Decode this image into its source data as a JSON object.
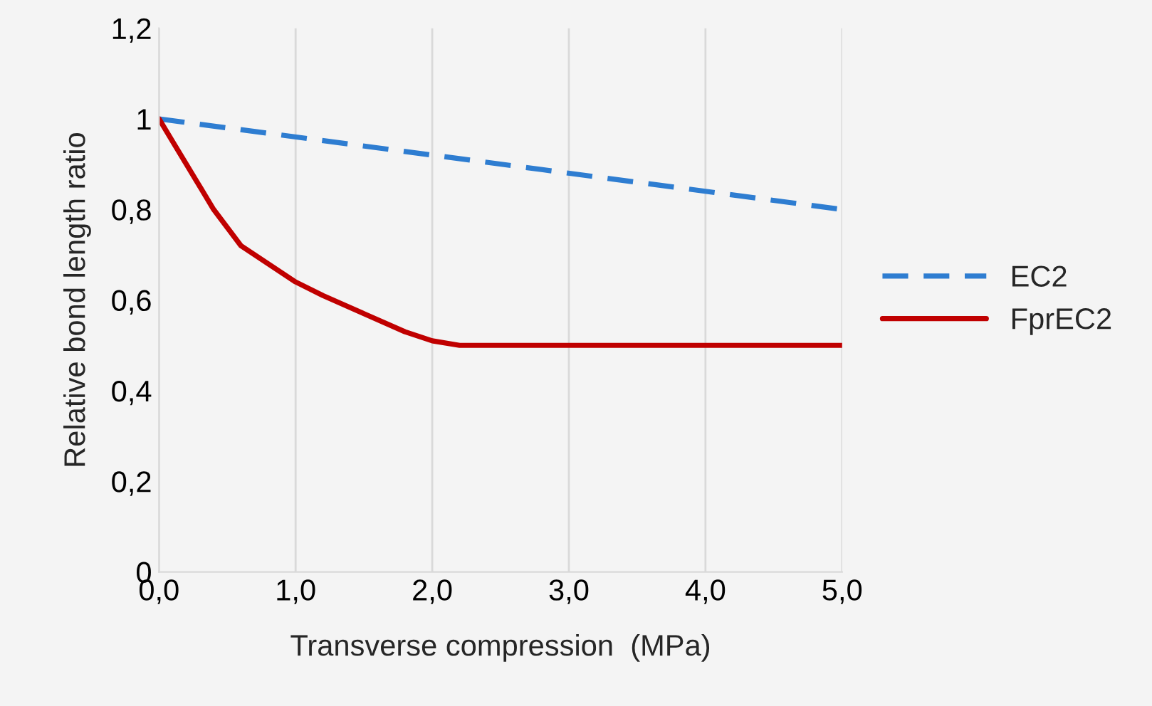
{
  "chart_data": {
    "type": "line",
    "xlabel": "Transverse compression  (MPa)",
    "ylabel": "Relative bond length ratio",
    "series": [
      {
        "name": "EC2",
        "color": "#2e7dd1",
        "line_style": "dashed",
        "x": [
          0,
          5
        ],
        "values": [
          1,
          0.8
        ]
      },
      {
        "name": "FprEC2",
        "color": "#c00000",
        "line_style": "solid",
        "x": [
          0,
          0.1,
          0.2,
          0.3,
          0.4,
          0.5,
          0.6,
          0.8,
          1.0,
          1.2,
          1.5,
          1.8,
          2.0,
          2.2,
          3.0,
          4.0,
          5.0
        ],
        "values": [
          1,
          0.95,
          0.9,
          0.85,
          0.8,
          0.76,
          0.72,
          0.68,
          0.64,
          0.61,
          0.57,
          0.53,
          0.51,
          0.5,
          0.5,
          0.5,
          0.5
        ]
      }
    ],
    "xlim": [
      0,
      5
    ],
    "ylim": [
      0,
      1.2
    ],
    "xticks": [
      {
        "value": 0,
        "label": "0,0"
      },
      {
        "value": 1,
        "label": "1,0"
      },
      {
        "value": 2,
        "label": "2,0"
      },
      {
        "value": 3,
        "label": "3,0"
      },
      {
        "value": 4,
        "label": "4,0"
      },
      {
        "value": 5,
        "label": "5,0"
      }
    ],
    "yticks": [
      0,
      {
        "value": 0.2,
        "label": "0,2"
      },
      {
        "value": 0.4,
        "label": "0,4"
      },
      {
        "value": 0.6,
        "label": "0,6"
      },
      {
        "value": 0.8,
        "label": "0,8"
      },
      1,
      {
        "value": 1.2,
        "label": "1,2"
      }
    ],
    "grid": "x",
    "legend": "right",
    "marker": "none"
  }
}
